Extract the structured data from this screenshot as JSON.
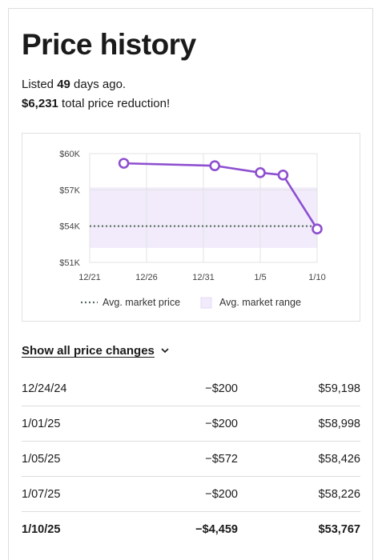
{
  "header": {
    "title": "Price history"
  },
  "summary": {
    "listed_prefix": "Listed ",
    "listed_days": "49",
    "listed_suffix": " days ago.",
    "reduction_amount": "$6,231",
    "reduction_suffix": " total price reduction!"
  },
  "chart_data": {
    "type": "line",
    "title": "",
    "xlabel": "",
    "ylabel": "",
    "y_ticks": [
      "$60K",
      "$57K",
      "$54K",
      "$51K"
    ],
    "y_tick_values": [
      60000,
      57000,
      54000,
      51000
    ],
    "x_ticks": [
      "12/21",
      "12/26",
      "12/31",
      "1/5",
      "1/10"
    ],
    "x_tick_days": [
      0,
      5,
      10,
      15,
      20
    ],
    "ylim": [
      51000,
      60000
    ],
    "series": [
      {
        "name": "",
        "color": "#8e4fd0",
        "points": [
          {
            "x": "12/24/24",
            "day": 3,
            "y": 59198
          },
          {
            "x": "1/01/25",
            "day": 11,
            "y": 58998
          },
          {
            "x": "1/05/25",
            "day": 15,
            "y": 58426
          },
          {
            "x": "1/07/25",
            "day": 17,
            "y": 58226
          },
          {
            "x": "1/10/25",
            "day": 20,
            "y": 53767
          }
        ]
      }
    ],
    "avg_market_price": 54000,
    "avg_market_range": [
      52200,
      57200
    ],
    "legend": [
      {
        "label": "Avg. market price",
        "style": "dotted",
        "color": "#5b6b66"
      },
      {
        "label": "Avg. market range",
        "style": "box",
        "color": "#f1ebfb"
      }
    ],
    "legend_position": "bottom",
    "grid": true
  },
  "toggle": {
    "label": "Show all price changes",
    "icon": "chevron-down-icon"
  },
  "price_changes": [
    {
      "date": "12/24/24",
      "change": "-$200",
      "price": "$59,198"
    },
    {
      "date": "1/01/25",
      "change": "-$200",
      "price": "$58,998"
    },
    {
      "date": "1/05/25",
      "change": "-$572",
      "price": "$58,426"
    },
    {
      "date": "1/07/25",
      "change": "-$200",
      "price": "$58,226"
    },
    {
      "date": "1/10/25",
      "change": "-$4,459",
      "price": "$53,767"
    }
  ]
}
